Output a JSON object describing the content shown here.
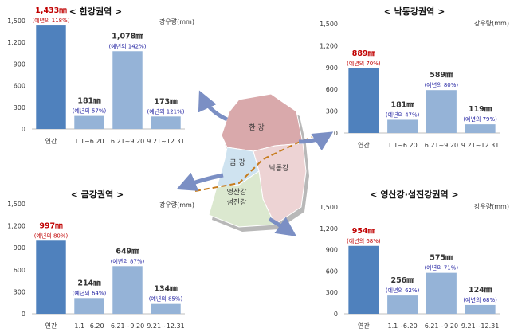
{
  "colors": {
    "annual_bar": "#4f81bd",
    "period_bar": "#95b3d7",
    "highlight_value": "#c00000",
    "percent_text": "#1f1fa0"
  },
  "map": {
    "regions": [
      "한 강",
      "금 강",
      "낙동강",
      "영산강\n섬진강"
    ]
  },
  "chart_data": [
    {
      "type": "bar",
      "title": "<  한강권역  >",
      "unit": "강우량(mm)",
      "categories": [
        "연간",
        "1.1~6.20",
        "6.21~9.20",
        "9.21~12.31"
      ],
      "values": [
        1433,
        181,
        1078,
        173
      ],
      "value_labels": [
        "1,433㎜",
        "181㎜",
        "1,078㎜",
        "173㎜"
      ],
      "percent_labels": [
        "(예년의 118%)",
        "(예년의 57%)",
        "(예년의 142%)",
        "(예년의 121%)"
      ],
      "ylim": [
        0,
        1500
      ],
      "yticks": [
        "0",
        "300",
        "600",
        "900",
        "1,200",
        "1,500"
      ]
    },
    {
      "type": "bar",
      "title": "<  낙동강권역  >",
      "unit": "강우량(mm)",
      "categories": [
        "연간",
        "1.1~6.20",
        "6.21~9.20",
        "9.21~12.31"
      ],
      "values": [
        889,
        181,
        589,
        119
      ],
      "value_labels": [
        "889㎜",
        "181㎜",
        "589㎜",
        "119㎜"
      ],
      "percent_labels": [
        "(예년의 70%)",
        "(예년의 47%)",
        "(예년의 80%)",
        "(예년의 79%)"
      ],
      "ylim": [
        0,
        1500
      ],
      "yticks": [
        "0",
        "300",
        "600",
        "900",
        "1,200",
        "1,500"
      ]
    },
    {
      "type": "bar",
      "title": "<  금강권역  >",
      "unit": "강우량(mm)",
      "categories": [
        "연간",
        "1.1~6.20",
        "6.21~9.20",
        "9.21~12.31"
      ],
      "values": [
        997,
        214,
        649,
        134
      ],
      "value_labels": [
        "997㎜",
        "214㎜",
        "649㎜",
        "134㎜"
      ],
      "percent_labels": [
        "(예년의 80%)",
        "(예년의 64%)",
        "(예년의 87%)",
        "(예년의 85%)"
      ],
      "ylim": [
        0,
        1500
      ],
      "yticks": [
        "0",
        "300",
        "600",
        "900",
        "1,200",
        "1,500"
      ]
    },
    {
      "type": "bar",
      "title": "<  영산강·섬진강권역  >",
      "unit": "강우량(mm)",
      "categories": [
        "연간",
        "1.1~6.20",
        "6.21~9.20",
        "9.21~12.31"
      ],
      "values": [
        954,
        256,
        575,
        124
      ],
      "value_labels": [
        "954㎜",
        "256㎜",
        "575㎜",
        "124㎜"
      ],
      "percent_labels": [
        "(예년의 68%)",
        "(예년의 62%)",
        "(예년의 71%)",
        "(예년의 68%)"
      ],
      "ylim": [
        0,
        1500
      ],
      "yticks": [
        "0",
        "300",
        "600",
        "900",
        "1,200",
        "1,500"
      ]
    }
  ]
}
